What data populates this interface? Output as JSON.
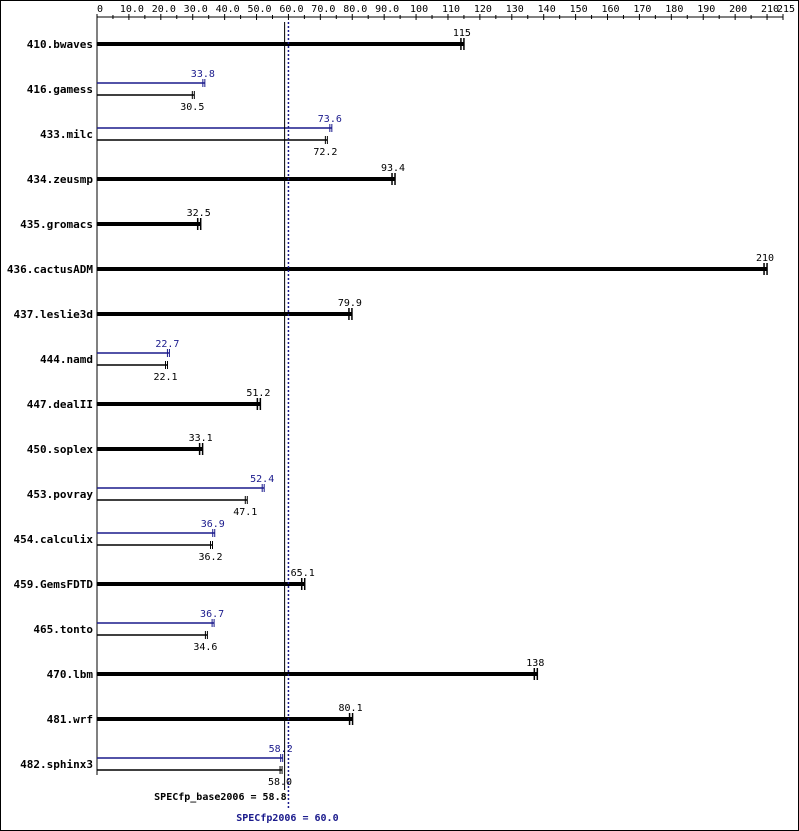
{
  "colors": {
    "base": "#000000",
    "peak": "#1a1a8c"
  },
  "chart_data": {
    "type": "bar",
    "orientation": "horizontal",
    "xlim": [
      0,
      215
    ],
    "x_ticks": [
      0,
      10,
      20,
      30,
      40,
      50,
      60,
      70,
      80,
      90,
      100,
      110,
      120,
      130,
      140,
      150,
      160,
      170,
      180,
      190,
      200,
      210,
      215
    ],
    "x_tick_labels": [
      "0",
      "10.0",
      "20.0",
      "30.0",
      "40.0",
      "50.0",
      "60.0",
      "70.0",
      "80.0",
      "90.0",
      "100",
      "110",
      "120",
      "130",
      "140",
      "150",
      "160",
      "170",
      "180",
      "190",
      "200",
      "210",
      "215"
    ],
    "grid": false,
    "benchmarks": [
      {
        "name": "410.bwaves",
        "base": 115,
        "base_label": "115",
        "peak": null,
        "peak_label": ""
      },
      {
        "name": "416.gamess",
        "base": 30.5,
        "base_label": "30.5",
        "peak": 33.8,
        "peak_label": "33.8"
      },
      {
        "name": "433.milc",
        "base": 72.2,
        "base_label": "72.2",
        "peak": 73.6,
        "peak_label": "73.6"
      },
      {
        "name": "434.zeusmp",
        "base": 93.4,
        "base_label": "93.4",
        "peak": null,
        "peak_label": ""
      },
      {
        "name": "435.gromacs",
        "base": 32.5,
        "base_label": "32.5",
        "peak": null,
        "peak_label": ""
      },
      {
        "name": "436.cactusADM",
        "base": 210,
        "base_label": "210",
        "peak": null,
        "peak_label": ""
      },
      {
        "name": "437.leslie3d",
        "base": 79.9,
        "base_label": "79.9",
        "peak": null,
        "peak_label": ""
      },
      {
        "name": "444.namd",
        "base": 22.1,
        "base_label": "22.1",
        "peak": 22.7,
        "peak_label": "22.7"
      },
      {
        "name": "447.dealII",
        "base": 51.2,
        "base_label": "51.2",
        "peak": null,
        "peak_label": ""
      },
      {
        "name": "450.soplex",
        "base": 33.1,
        "base_label": "33.1",
        "peak": null,
        "peak_label": ""
      },
      {
        "name": "453.povray",
        "base": 47.1,
        "base_label": "47.1",
        "peak": 52.4,
        "peak_label": "52.4"
      },
      {
        "name": "454.calculix",
        "base": 36.2,
        "base_label": "36.2",
        "peak": 36.9,
        "peak_label": "36.9"
      },
      {
        "name": "459.GemsFDTD",
        "base": 65.1,
        "base_label": "65.1",
        "peak": null,
        "peak_label": ""
      },
      {
        "name": "465.tonto",
        "base": 34.6,
        "base_label": "34.6",
        "peak": 36.7,
        "peak_label": "36.7"
      },
      {
        "name": "470.lbm",
        "base": 138,
        "base_label": "138",
        "peak": null,
        "peak_label": ""
      },
      {
        "name": "481.wrf",
        "base": 80.1,
        "base_label": "80.1",
        "peak": null,
        "peak_label": ""
      },
      {
        "name": "482.sphinx3",
        "base": 58.0,
        "base_label": "58.0",
        "peak": 58.2,
        "peak_label": "58.2"
      }
    ],
    "summary": {
      "base_value": 58.8,
      "base_label": "SPECfp_base2006 = 58.8",
      "peak_value": 60.0,
      "peak_label": "SPECfp2006 = 60.0"
    }
  }
}
